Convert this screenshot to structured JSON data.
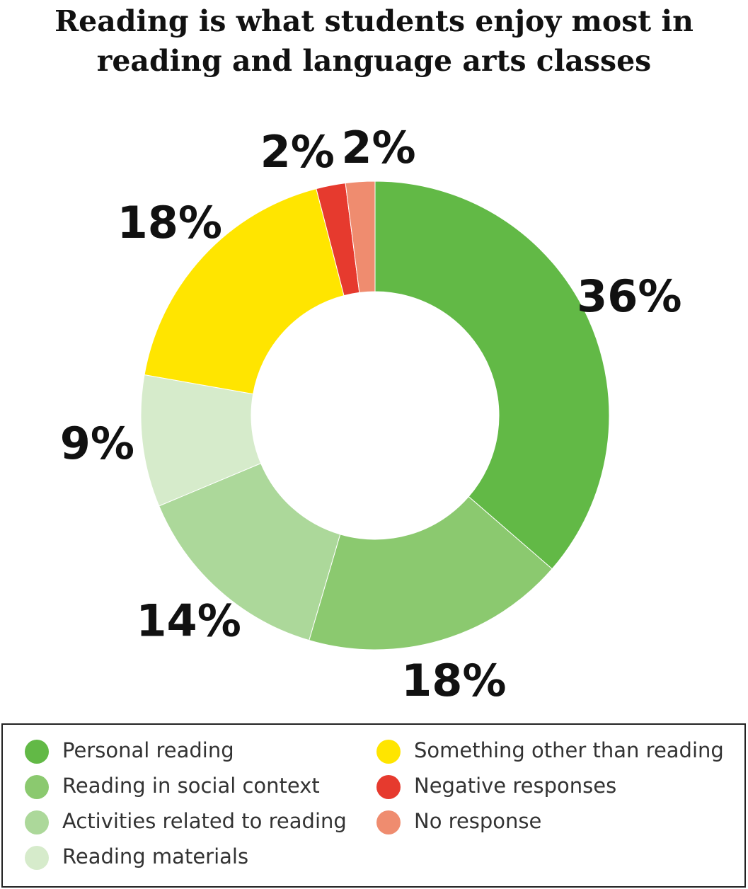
{
  "chart_data": {
    "type": "donut",
    "title": "Reading is what students enjoy most in reading and language arts classes",
    "categories": [
      "Personal reading",
      "Reading in social context",
      "Activities related to reading",
      "Reading materials",
      "Something other than reading",
      "Negative responses",
      "No response"
    ],
    "values": [
      36,
      18,
      14,
      9,
      18,
      2,
      2
    ],
    "value_labels": [
      "36%",
      "18%",
      "14%",
      "9%",
      "18%",
      "2%",
      "2%"
    ],
    "colors": [
      "#62b946",
      "#8bc96f",
      "#acd89a",
      "#d6ebcb",
      "#ffe500",
      "#e63a2e",
      "#ef8c6f"
    ]
  }
}
